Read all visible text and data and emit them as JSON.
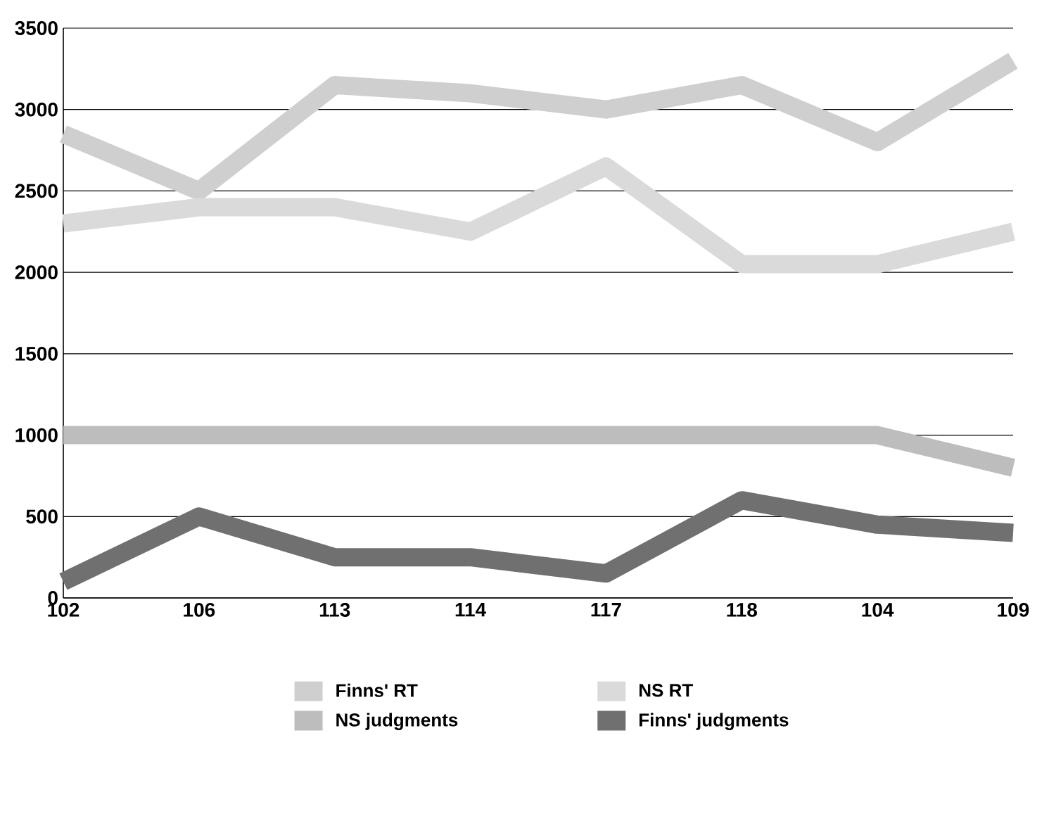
{
  "chart_data": {
    "type": "line",
    "categories": [
      "102",
      "106",
      "113",
      "114",
      "117",
      "118",
      "104",
      "109"
    ],
    "series": [
      {
        "name": "Finns' RT",
        "color": "#cfcfcf",
        "values": [
          2850,
          2500,
          3150,
          3100,
          3000,
          3150,
          2800,
          3300
        ]
      },
      {
        "name": "NS RT",
        "color": "#dadada",
        "values": [
          2300,
          2400,
          2400,
          2250,
          2650,
          2050,
          2050,
          2250
        ]
      },
      {
        "name": "NS judgments",
        "color": "#bdbdbd",
        "values": [
          1000,
          1000,
          1000,
          1000,
          1000,
          1000,
          1000,
          800
        ]
      },
      {
        "name": "Finns' judgments",
        "color": "#707070",
        "values": [
          100,
          500,
          250,
          250,
          150,
          600,
          450,
          400
        ]
      }
    ],
    "ylim": [
      0,
      3500
    ],
    "yticks": [
      0,
      500,
      1000,
      1500,
      2000,
      2500,
      3000,
      3500
    ],
    "grid": "y",
    "legend": "bottom"
  }
}
